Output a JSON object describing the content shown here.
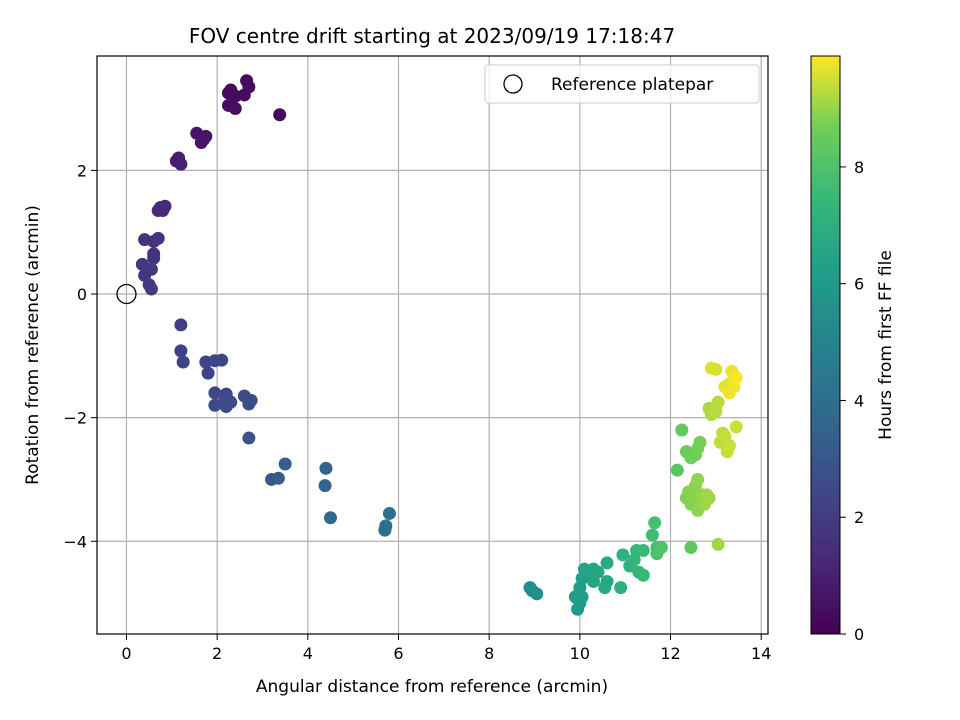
{
  "chart_data": {
    "type": "scatter",
    "title": "FOV centre drift starting at 2023/09/19 17:18:47",
    "xlabel": "Angular distance from reference (arcmin)",
    "ylabel": "Rotation from reference (arcmin)",
    "xlim": [
      -0.65,
      14.15
    ],
    "ylim": [
      -5.5,
      3.85
    ],
    "x_ticks": [
      0,
      2,
      4,
      6,
      8,
      10,
      12,
      14
    ],
    "x_tick_labels": [
      "0",
      "2",
      "4",
      "6",
      "8",
      "10",
      "12",
      "14"
    ],
    "y_ticks": [
      -4,
      -2,
      0,
      2
    ],
    "y_tick_labels": [
      "−4",
      "−2",
      "0",
      "2"
    ],
    "grid": true,
    "legend": {
      "position": "top-right",
      "entries": [
        {
          "label": "Reference platepar",
          "marker": "open-circle"
        }
      ]
    },
    "reference_point": {
      "x": 0,
      "y": 0,
      "label": "Reference platepar"
    },
    "colorbar": {
      "label": "Hours from first FF file",
      "range": [
        0,
        9.9
      ],
      "ticks": [
        0,
        2,
        4,
        6,
        8
      ],
      "tick_labels": [
        "0",
        "2",
        "4",
        "6",
        "8"
      ],
      "colormap": "viridis"
    },
    "series": [
      {
        "points": [
          {
            "x": 2.3,
            "y": 3.3,
            "t": 0.3
          },
          {
            "x": 2.25,
            "y": 3.25,
            "t": 0.3
          },
          {
            "x": 2.4,
            "y": 3.2,
            "t": 0.35
          },
          {
            "x": 2.6,
            "y": 3.22,
            "t": 0.35
          },
          {
            "x": 2.65,
            "y": 3.45,
            "t": 0.3
          },
          {
            "x": 2.7,
            "y": 3.35,
            "t": 0.3
          },
          {
            "x": 2.25,
            "y": 3.05,
            "t": 0.4
          },
          {
            "x": 2.4,
            "y": 3.0,
            "t": 0.4
          },
          {
            "x": 3.38,
            "y": 2.9,
            "t": 0.35
          },
          {
            "x": 1.55,
            "y": 2.6,
            "t": 0.6
          },
          {
            "x": 1.65,
            "y": 2.45,
            "t": 0.65
          },
          {
            "x": 1.7,
            "y": 2.5,
            "t": 0.65
          },
          {
            "x": 1.75,
            "y": 2.55,
            "t": 0.7
          },
          {
            "x": 1.1,
            "y": 2.15,
            "t": 0.9
          },
          {
            "x": 1.15,
            "y": 2.2,
            "t": 0.9
          },
          {
            "x": 1.2,
            "y": 2.1,
            "t": 0.95
          },
          {
            "x": 0.7,
            "y": 1.35,
            "t": 1.3
          },
          {
            "x": 0.75,
            "y": 1.4,
            "t": 1.3
          },
          {
            "x": 0.8,
            "y": 1.35,
            "t": 1.35
          },
          {
            "x": 0.85,
            "y": 1.42,
            "t": 1.35
          },
          {
            "x": 0.4,
            "y": 0.88,
            "t": 1.6
          },
          {
            "x": 0.6,
            "y": 0.85,
            "t": 1.6
          },
          {
            "x": 0.7,
            "y": 0.9,
            "t": 1.65
          },
          {
            "x": 0.6,
            "y": 0.65,
            "t": 1.7
          },
          {
            "x": 0.6,
            "y": 0.58,
            "t": 1.7
          },
          {
            "x": 0.55,
            "y": 0.4,
            "t": 1.75
          },
          {
            "x": 0.35,
            "y": 0.48,
            "t": 1.8
          },
          {
            "x": 0.4,
            "y": 0.3,
            "t": 1.8
          },
          {
            "x": 0.5,
            "y": 0.15,
            "t": 1.85
          },
          {
            "x": 0.55,
            "y": 0.08,
            "t": 1.9
          },
          {
            "x": 1.2,
            "y": -0.5,
            "t": 2.1
          },
          {
            "x": 1.2,
            "y": -0.92,
            "t": 2.2
          },
          {
            "x": 1.25,
            "y": -1.1,
            "t": 2.2
          },
          {
            "x": 1.75,
            "y": -1.1,
            "t": 2.3
          },
          {
            "x": 1.8,
            "y": -1.28,
            "t": 2.3
          },
          {
            "x": 1.95,
            "y": -1.08,
            "t": 2.35
          },
          {
            "x": 2.1,
            "y": -1.07,
            "t": 2.35
          },
          {
            "x": 1.95,
            "y": -1.6,
            "t": 2.4
          },
          {
            "x": 2.2,
            "y": -1.62,
            "t": 2.45
          },
          {
            "x": 1.95,
            "y": -1.8,
            "t": 2.5
          },
          {
            "x": 2.15,
            "y": -1.75,
            "t": 2.5
          },
          {
            "x": 2.2,
            "y": -1.82,
            "t": 2.55
          },
          {
            "x": 2.3,
            "y": -1.75,
            "t": 2.55
          },
          {
            "x": 2.6,
            "y": -1.65,
            "t": 2.6
          },
          {
            "x": 2.7,
            "y": -1.78,
            "t": 2.65
          },
          {
            "x": 2.75,
            "y": -1.72,
            "t": 2.65
          },
          {
            "x": 2.7,
            "y": -2.33,
            "t": 2.9
          },
          {
            "x": 3.2,
            "y": -3.0,
            "t": 3.1
          },
          {
            "x": 3.35,
            "y": -2.98,
            "t": 3.15
          },
          {
            "x": 3.5,
            "y": -2.75,
            "t": 3.2
          },
          {
            "x": 4.4,
            "y": -2.82,
            "t": 3.5
          },
          {
            "x": 4.38,
            "y": -3.1,
            "t": 3.55
          },
          {
            "x": 4.5,
            "y": -3.62,
            "t": 3.7
          },
          {
            "x": 5.7,
            "y": -3.82,
            "t": 4.0
          },
          {
            "x": 5.72,
            "y": -3.75,
            "t": 4.05
          },
          {
            "x": 5.8,
            "y": -3.55,
            "t": 4.1
          },
          {
            "x": 8.9,
            "y": -4.75,
            "t": 5.5
          },
          {
            "x": 8.95,
            "y": -4.8,
            "t": 5.55
          },
          {
            "x": 9.05,
            "y": -4.85,
            "t": 5.6
          },
          {
            "x": 9.9,
            "y": -4.9,
            "t": 6.0
          },
          {
            "x": 9.95,
            "y": -5.1,
            "t": 6.05
          },
          {
            "x": 10.0,
            "y": -5.0,
            "t": 6.1
          },
          {
            "x": 10.0,
            "y": -4.75,
            "t": 6.2
          },
          {
            "x": 10.05,
            "y": -4.9,
            "t": 6.2
          },
          {
            "x": 10.05,
            "y": -4.6,
            "t": 6.3
          },
          {
            "x": 10.1,
            "y": -4.45,
            "t": 6.4
          },
          {
            "x": 10.2,
            "y": -4.5,
            "t": 6.5
          },
          {
            "x": 10.3,
            "y": -4.65,
            "t": 6.5
          },
          {
            "x": 10.3,
            "y": -4.45,
            "t": 6.55
          },
          {
            "x": 10.4,
            "y": -4.5,
            "t": 6.6
          },
          {
            "x": 10.55,
            "y": -4.75,
            "t": 6.65
          },
          {
            "x": 10.6,
            "y": -4.65,
            "t": 6.7
          },
          {
            "x": 10.6,
            "y": -4.35,
            "t": 6.8
          },
          {
            "x": 10.9,
            "y": -4.75,
            "t": 7.0
          },
          {
            "x": 10.95,
            "y": -4.22,
            "t": 7.1
          },
          {
            "x": 11.1,
            "y": -4.4,
            "t": 7.2
          },
          {
            "x": 11.2,
            "y": -4.3,
            "t": 7.3
          },
          {
            "x": 11.25,
            "y": -4.15,
            "t": 7.4
          },
          {
            "x": 11.3,
            "y": -4.5,
            "t": 7.4
          },
          {
            "x": 11.4,
            "y": -4.55,
            "t": 7.5
          },
          {
            "x": 11.4,
            "y": -4.15,
            "t": 7.5
          },
          {
            "x": 11.6,
            "y": -3.9,
            "t": 7.7
          },
          {
            "x": 11.65,
            "y": -3.7,
            "t": 7.8
          },
          {
            "x": 11.7,
            "y": -4.1,
            "t": 7.8
          },
          {
            "x": 11.7,
            "y": -4.2,
            "t": 7.9
          },
          {
            "x": 11.8,
            "y": -4.1,
            "t": 8.0
          },
          {
            "x": 12.15,
            "y": -2.85,
            "t": 8.2
          },
          {
            "x": 12.45,
            "y": -4.1,
            "t": 8.3
          },
          {
            "x": 12.25,
            "y": -2.2,
            "t": 8.4
          },
          {
            "x": 12.35,
            "y": -2.55,
            "t": 8.5
          },
          {
            "x": 12.45,
            "y": -2.65,
            "t": 8.6
          },
          {
            "x": 12.55,
            "y": -2.6,
            "t": 8.65
          },
          {
            "x": 12.6,
            "y": -2.5,
            "t": 8.7
          },
          {
            "x": 12.65,
            "y": -2.4,
            "t": 8.7
          },
          {
            "x": 12.35,
            "y": -3.3,
            "t": 8.8
          },
          {
            "x": 12.4,
            "y": -3.2,
            "t": 8.85
          },
          {
            "x": 12.45,
            "y": -3.4,
            "t": 8.85
          },
          {
            "x": 12.5,
            "y": -3.3,
            "t": 8.9
          },
          {
            "x": 12.55,
            "y": -3.1,
            "t": 8.9
          },
          {
            "x": 12.6,
            "y": -3.0,
            "t": 8.95
          },
          {
            "x": 12.6,
            "y": -3.5,
            "t": 8.95
          },
          {
            "x": 12.7,
            "y": -3.35,
            "t": 9.0
          },
          {
            "x": 12.7,
            "y": -3.25,
            "t": 9.0
          },
          {
            "x": 12.75,
            "y": -3.4,
            "t": 9.05
          },
          {
            "x": 12.8,
            "y": -3.25,
            "t": 9.05
          },
          {
            "x": 12.85,
            "y": -3.3,
            "t": 9.1
          },
          {
            "x": 13.05,
            "y": -4.05,
            "t": 9.1
          },
          {
            "x": 12.85,
            "y": -1.85,
            "t": 9.2
          },
          {
            "x": 12.9,
            "y": -1.95,
            "t": 9.25
          },
          {
            "x": 13.0,
            "y": -1.9,
            "t": 9.3
          },
          {
            "x": 13.05,
            "y": -1.75,
            "t": 9.3
          },
          {
            "x": 13.1,
            "y": -2.4,
            "t": 9.35
          },
          {
            "x": 13.15,
            "y": -2.25,
            "t": 9.35
          },
          {
            "x": 13.2,
            "y": -2.3,
            "t": 9.4
          },
          {
            "x": 13.25,
            "y": -2.55,
            "t": 9.4
          },
          {
            "x": 13.3,
            "y": -2.45,
            "t": 9.45
          },
          {
            "x": 13.45,
            "y": -2.15,
            "t": 9.45
          },
          {
            "x": 12.9,
            "y": -1.2,
            "t": 9.6
          },
          {
            "x": 13.0,
            "y": -1.22,
            "t": 9.6
          },
          {
            "x": 13.2,
            "y": -1.5,
            "t": 9.7
          },
          {
            "x": 13.3,
            "y": -1.45,
            "t": 9.7
          },
          {
            "x": 13.35,
            "y": -1.25,
            "t": 9.75
          },
          {
            "x": 13.4,
            "y": -1.5,
            "t": 9.8
          },
          {
            "x": 13.45,
            "y": -1.35,
            "t": 9.85
          },
          {
            "x": 13.3,
            "y": -1.6,
            "t": 9.8
          }
        ]
      }
    ]
  }
}
